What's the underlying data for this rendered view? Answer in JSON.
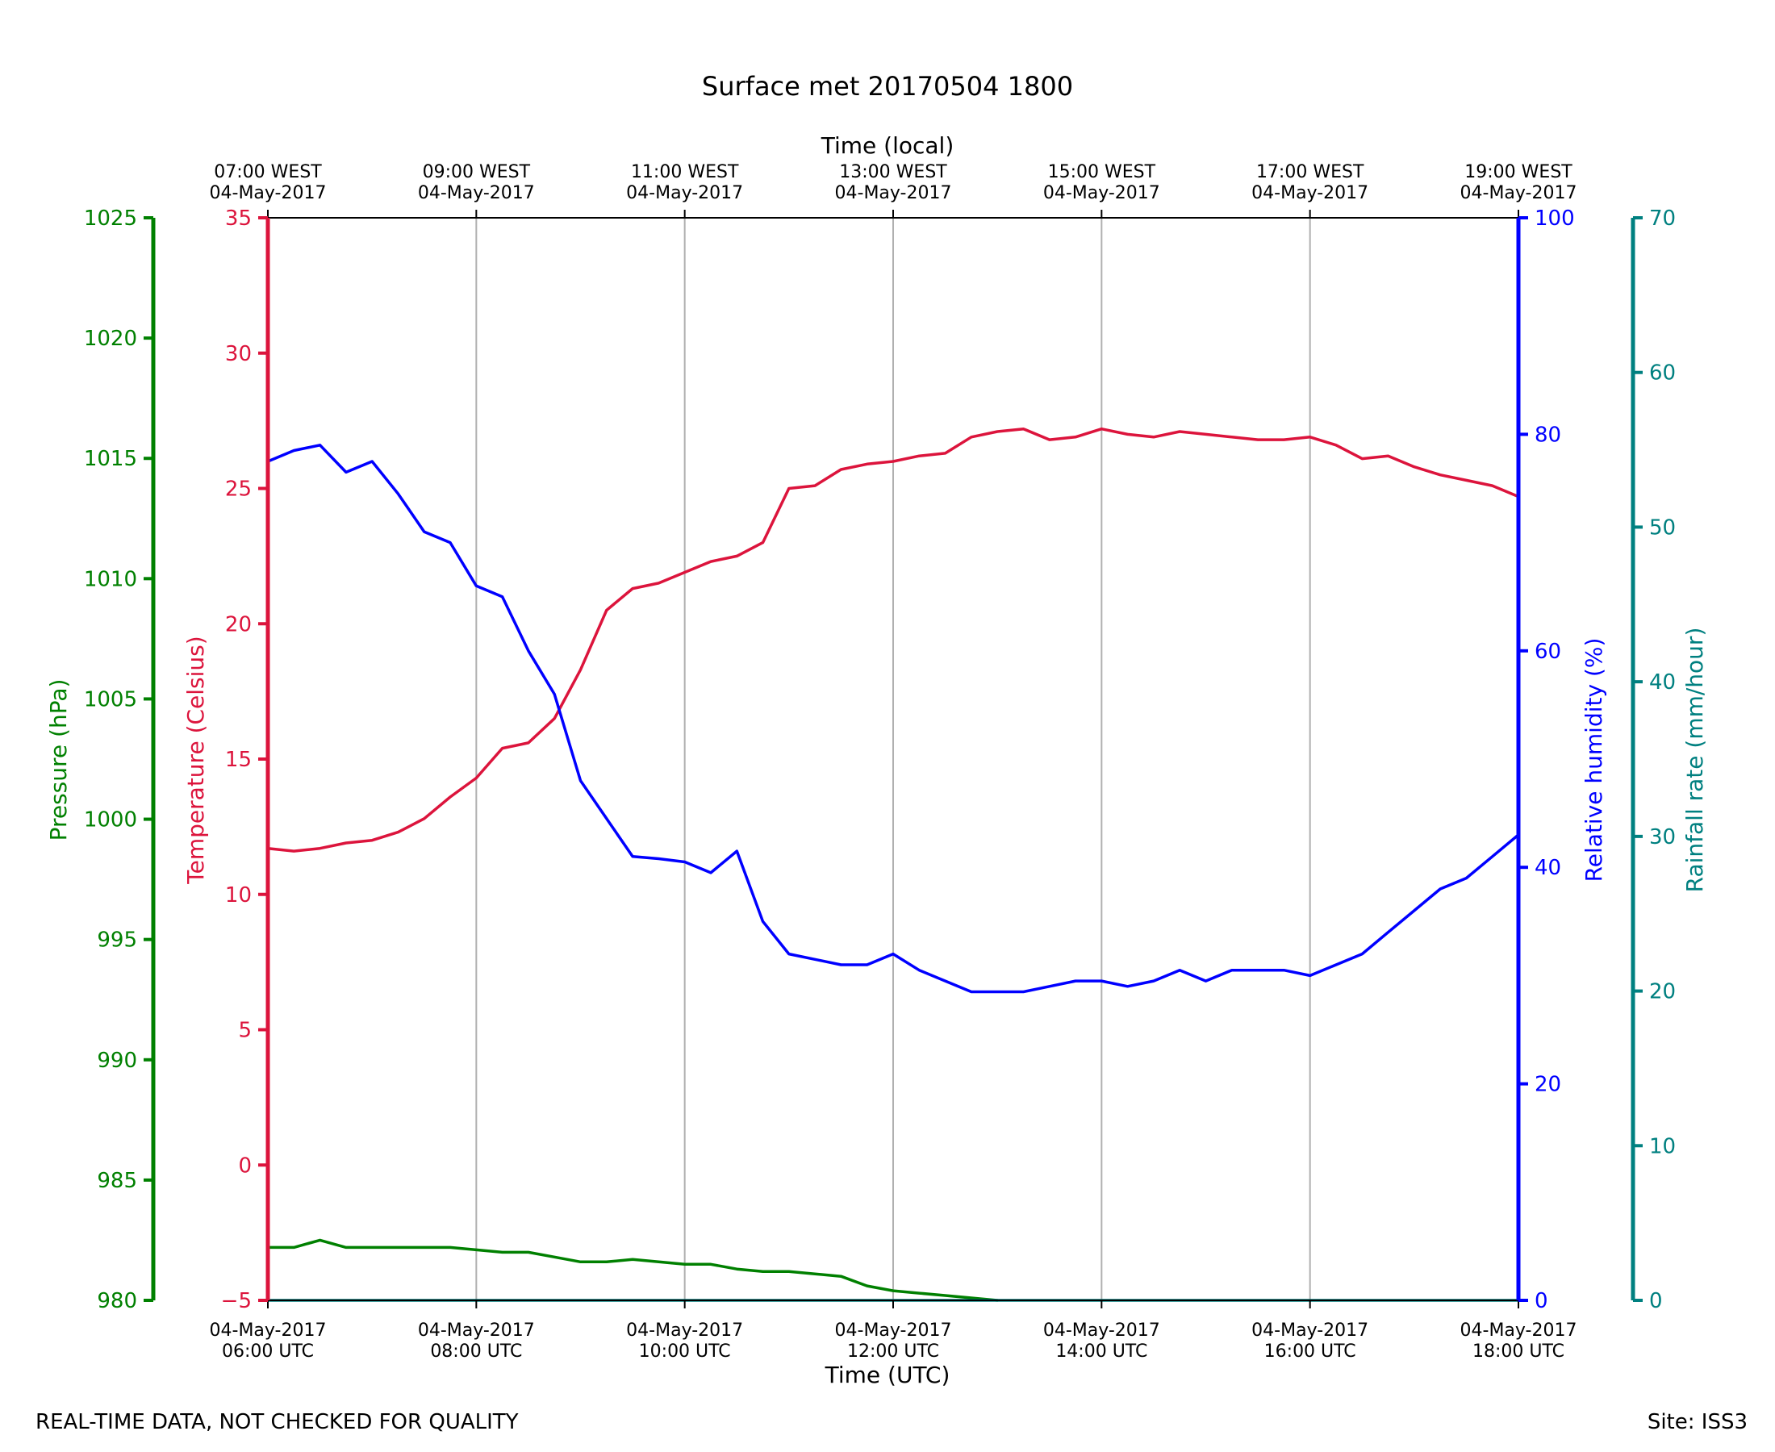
{
  "chart_data": {
    "type": "line",
    "title": "Surface met 20170504 1800",
    "top_axis_label": "Time (local)",
    "xlabel": "Time (UTC)",
    "x_range_hours_utc": [
      6,
      18
    ],
    "x_ticks_utc": [
      6,
      8,
      10,
      12,
      14,
      16,
      18
    ],
    "bottom_tick_labels": [
      {
        "date": "04-May-2017",
        "time": "06:00 UTC"
      },
      {
        "date": "04-May-2017",
        "time": "08:00 UTC"
      },
      {
        "date": "04-May-2017",
        "time": "10:00 UTC"
      },
      {
        "date": "04-May-2017",
        "time": "12:00 UTC"
      },
      {
        "date": "04-May-2017",
        "time": "14:00 UTC"
      },
      {
        "date": "04-May-2017",
        "time": "16:00 UTC"
      },
      {
        "date": "04-May-2017",
        "time": "18:00 UTC"
      }
    ],
    "top_tick_labels": [
      {
        "time": "07:00 WEST",
        "date": "04-May-2017"
      },
      {
        "time": "09:00 WEST",
        "date": "04-May-2017"
      },
      {
        "time": "11:00 WEST",
        "date": "04-May-2017"
      },
      {
        "time": "13:00 WEST",
        "date": "04-May-2017"
      },
      {
        "time": "15:00 WEST",
        "date": "04-May-2017"
      },
      {
        "time": "17:00 WEST",
        "date": "04-May-2017"
      },
      {
        "time": "19:00 WEST",
        "date": "04-May-2017"
      }
    ],
    "grid": "vertical",
    "axes": {
      "pressure": {
        "label": "Pressure (hPa)",
        "color": "#008000",
        "ylim": [
          980,
          1025
        ],
        "ticks": [
          980,
          985,
          990,
          995,
          1000,
          1005,
          1010,
          1015,
          1020,
          1025
        ]
      },
      "temperature": {
        "label": "Temperature (Celsius)",
        "color": "#dc143c",
        "ylim": [
          -5,
          35
        ],
        "ticks": [
          -5,
          0,
          5,
          10,
          15,
          20,
          25,
          30,
          35
        ],
        "tick_labels": [
          "−5",
          "0",
          "5",
          "10",
          "15",
          "20",
          "25",
          "30",
          "35"
        ]
      },
      "humidity": {
        "label": "Relative humidity (%)",
        "color": "#0000ff",
        "ylim": [
          0,
          100
        ],
        "ticks": [
          0,
          20,
          40,
          60,
          80,
          100
        ]
      },
      "rainfall": {
        "label": "Rainfall rate (mm/hour)",
        "color": "#008080",
        "ylim": [
          0,
          70
        ],
        "ticks": [
          0,
          10,
          20,
          30,
          40,
          50,
          60,
          70
        ]
      }
    },
    "series": [
      {
        "name": "Temperature",
        "axis": "temperature",
        "color": "#dc143c",
        "x": [
          6.0,
          6.25,
          6.5,
          6.75,
          7.0,
          7.25,
          7.5,
          7.75,
          8.0,
          8.25,
          8.5,
          8.75,
          9.0,
          9.25,
          9.5,
          9.75,
          10.0,
          10.25,
          10.5,
          10.75,
          11.0,
          11.25,
          11.5,
          11.75,
          12.0,
          12.25,
          12.5,
          12.75,
          13.0,
          13.25,
          13.5,
          13.75,
          14.0,
          14.25,
          14.5,
          14.75,
          15.0,
          15.25,
          15.5,
          15.75,
          16.0,
          16.25,
          16.5,
          16.75,
          17.0,
          17.25,
          17.5,
          17.75,
          18.0
        ],
        "values": [
          11.7,
          11.6,
          11.7,
          11.9,
          12.0,
          12.3,
          12.8,
          13.6,
          14.3,
          15.4,
          15.6,
          16.5,
          18.3,
          20.5,
          21.3,
          21.5,
          21.9,
          22.3,
          22.5,
          23.0,
          25.0,
          25.1,
          25.7,
          25.9,
          26.0,
          26.2,
          26.3,
          26.9,
          27.1,
          27.2,
          26.8,
          26.9,
          27.2,
          27.0,
          26.9,
          27.1,
          27.0,
          26.9,
          26.8,
          26.8,
          26.9,
          26.6,
          26.1,
          26.2,
          25.8,
          25.5,
          25.3,
          25.1,
          24.7
        ]
      },
      {
        "name": "Relative humidity",
        "axis": "humidity",
        "color": "#0000ff",
        "x": [
          6.0,
          6.25,
          6.5,
          6.75,
          7.0,
          7.25,
          7.5,
          7.75,
          8.0,
          8.25,
          8.5,
          8.75,
          9.0,
          9.25,
          9.5,
          9.75,
          10.0,
          10.25,
          10.5,
          10.75,
          11.0,
          11.25,
          11.5,
          11.75,
          12.0,
          12.25,
          12.5,
          12.75,
          13.0,
          13.25,
          13.5,
          13.75,
          14.0,
          14.25,
          14.5,
          14.75,
          15.0,
          15.25,
          15.5,
          15.75,
          16.0,
          16.25,
          16.5,
          16.75,
          17.0,
          17.25,
          17.5,
          17.75,
          18.0
        ],
        "values": [
          77.5,
          78.5,
          79.0,
          76.5,
          77.5,
          74.5,
          71.0,
          70.0,
          66.0,
          65.0,
          60.0,
          56.0,
          48.0,
          44.5,
          41.0,
          40.8,
          40.5,
          39.5,
          41.5,
          35.0,
          32.0,
          31.5,
          31.0,
          31.0,
          32.0,
          30.5,
          29.5,
          28.5,
          28.5,
          28.5,
          29.0,
          29.5,
          29.5,
          29.0,
          29.5,
          30.5,
          29.5,
          30.5,
          30.5,
          30.5,
          30.0,
          31.0,
          32.0,
          34.0,
          36.0,
          38.0,
          39.0,
          41.0,
          43.0
        ]
      },
      {
        "name": "Pressure",
        "axis": "pressure",
        "color": "#008000",
        "x": [
          6.0,
          6.25,
          6.5,
          6.75,
          7.0,
          7.25,
          7.5,
          7.75,
          8.0,
          8.25,
          8.5,
          8.75,
          9.0,
          9.25,
          9.5,
          9.75,
          10.0,
          10.25,
          10.5,
          10.75,
          11.0,
          11.25,
          11.5,
          11.75,
          12.0,
          12.25,
          12.5,
          12.75,
          13.0
        ],
        "values": [
          982.2,
          982.2,
          982.5,
          982.2,
          982.2,
          982.2,
          982.2,
          982.2,
          982.1,
          982.0,
          982.0,
          981.8,
          981.6,
          981.6,
          981.7,
          981.6,
          981.5,
          981.5,
          981.3,
          981.2,
          981.2,
          981.1,
          981.0,
          980.6,
          980.4,
          980.3,
          980.2,
          980.1,
          980.0
        ]
      },
      {
        "name": "Rainfall rate",
        "axis": "rainfall",
        "color": "#008080",
        "x": [
          6.0,
          18.0
        ],
        "values": [
          0.0,
          0.0
        ]
      }
    ]
  },
  "footer": {
    "left": "REAL-TIME DATA, NOT CHECKED FOR QUALITY",
    "right": "Site: ISS3"
  }
}
